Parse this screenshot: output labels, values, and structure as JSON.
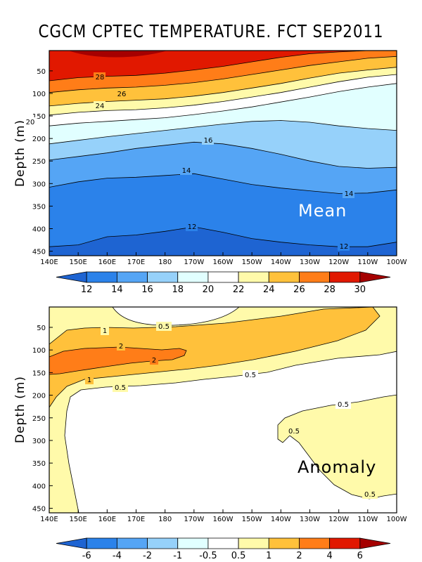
{
  "title": "CGCM CPTEC TEMPERATURE. FCT SEP2011",
  "chart_data": [
    {
      "type": "heatmap",
      "name": "mean",
      "panel_label": "Mean",
      "ylabel": "Depth (m)",
      "x_ticks": [
        "140E",
        "150E",
        "160E",
        "170E",
        "180",
        "170W",
        "160W",
        "150W",
        "140W",
        "130W",
        "120W",
        "110W",
        "100W"
      ],
      "y_ticks": [
        50,
        100,
        150,
        200,
        250,
        300,
        350,
        400,
        450
      ],
      "xlim": [
        140,
        260
      ],
      "ylim": [
        460,
        5
      ],
      "isotherm_depths": {
        "lon": [
          140,
          150,
          160,
          170,
          180,
          190,
          200,
          210,
          220,
          230,
          240,
          250,
          260
        ],
        "28": [
          72,
          65,
          62,
          60,
          55,
          48,
          40,
          30,
          20,
          12,
          8,
          5,
          5
        ],
        "26": [
          98,
          92,
          88,
          86,
          82,
          76,
          68,
          58,
          48,
          38,
          30,
          22,
          18
        ],
        "24": [
          128,
          122,
          118,
          115,
          112,
          106,
          98,
          88,
          78,
          66,
          55,
          48,
          42
        ],
        "22": [
          148,
          142,
          138,
          136,
          132,
          126,
          118,
          108,
          98,
          86,
          74,
          64,
          58
        ],
        "20": [
          172,
          166,
          162,
          158,
          154,
          147,
          139,
          130,
          119,
          108,
          96,
          86,
          78
        ],
        "18": [
          212,
          204,
          196,
          189,
          182,
          175,
          168,
          162,
          160,
          164,
          172,
          178,
          182
        ],
        "16": [
          248,
          240,
          232,
          222,
          215,
          208,
          212,
          222,
          235,
          250,
          262,
          266,
          264
        ],
        "14": [
          308,
          296,
          288,
          286,
          282,
          278,
          290,
          302,
          310,
          316,
          322,
          321,
          314
        ],
        "12": [
          440,
          436,
          418,
          414,
          406,
          396,
          408,
          422,
          430,
          436,
          440,
          440,
          430
        ]
      },
      "colorbar": {
        "labels": [
          "12",
          "14",
          "16",
          "18",
          "20",
          "22",
          "24",
          "26",
          "28",
          "30"
        ],
        "colors": [
          "#1e64d2",
          "#2b82ea",
          "#55a5f5",
          "#96d1fa",
          "#e1ffff",
          "#ffffff",
          "#fffaaa",
          "#ffc13b",
          "#ff7d18",
          "#e11800",
          "#a50000"
        ]
      },
      "contour_labels": [
        "28",
        "26",
        "24",
        "20",
        "16",
        "14",
        "14",
        "12",
        "12"
      ]
    },
    {
      "type": "heatmap",
      "name": "anomaly",
      "panel_label": "Anomaly",
      "ylabel": "Depth (m)",
      "x_ticks": [
        "140E",
        "150E",
        "160E",
        "170E",
        "180",
        "170W",
        "160W",
        "150W",
        "140W",
        "130W",
        "120W",
        "110W",
        "100W"
      ],
      "y_ticks": [
        50,
        100,
        150,
        200,
        250,
        300,
        350,
        400,
        450
      ],
      "xlim": [
        140,
        260
      ],
      "ylim": [
        460,
        5
      ],
      "colorbar": {
        "labels": [
          "-6",
          "-4",
          "-2",
          "-1",
          "-0.5",
          "0.5",
          "1",
          "2",
          "4",
          "6"
        ],
        "colors": [
          "#1e64d2",
          "#2b82ea",
          "#55a5f5",
          "#96d1fa",
          "#e1ffff",
          "#ffffff",
          "#fffaaa",
          "#ffc13b",
          "#ff7d18",
          "#e11800",
          "#a50000"
        ]
      },
      "contour_labels": [
        "1",
        "0.5",
        "2",
        "2",
        "1",
        "0.5",
        "0.5",
        "0.5",
        "0.5",
        "0.5"
      ]
    }
  ]
}
